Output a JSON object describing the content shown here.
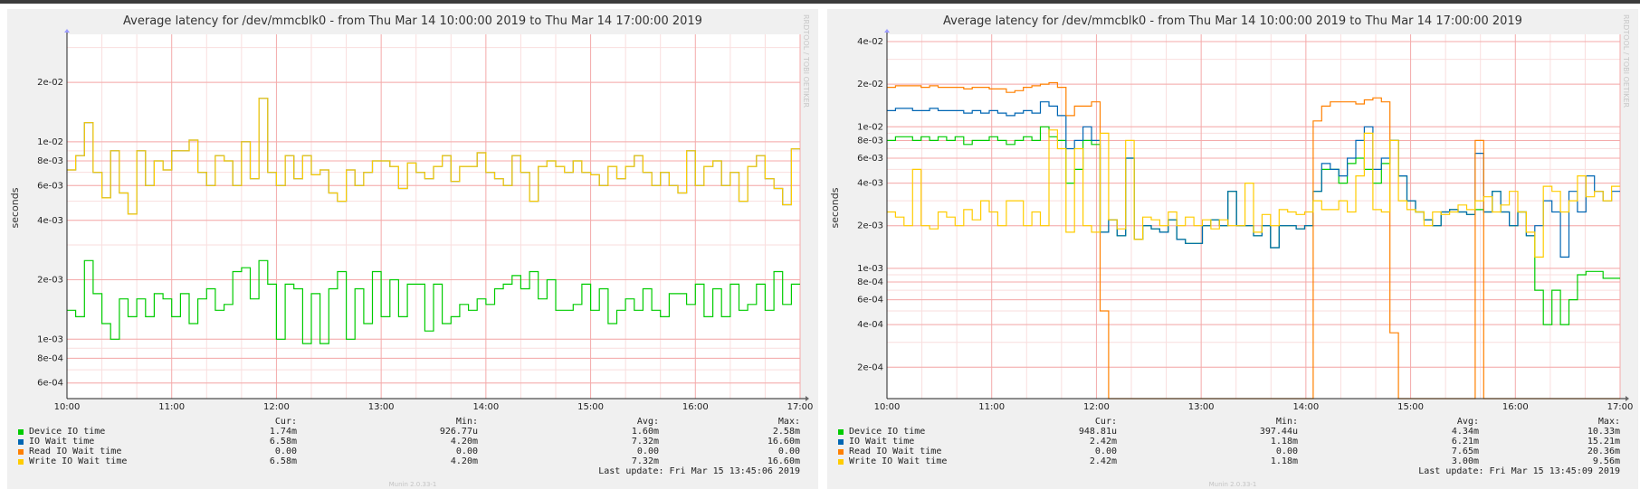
{
  "page": {
    "background": "#ffffff",
    "topbar_color": "#3c3c3c"
  },
  "colors": {
    "panel_bg": "#f0f0f0",
    "plot_bg": "#ffffff",
    "grid_major": "#f4aaaa",
    "grid_minor": "#f9dede"
  },
  "legend_header": {
    "cur": "Cur:",
    "min": "Min:",
    "avg": "Avg:",
    "max": "Max:"
  },
  "chart_data": [
    {
      "type": "line",
      "title": "Average latency for /dev/mmcblk0 - from Thu Mar 14 10:00:00 2019 to Thu Mar 14 17:00:00 2019",
      "ylabel": "seconds",
      "yscale": "log",
      "xlim": [
        "10:00",
        "17:00"
      ],
      "ylim": [
        0.0005,
        0.035
      ],
      "x_ticks": [
        "10:00",
        "11:00",
        "12:00",
        "13:00",
        "14:00",
        "15:00",
        "16:00",
        "17:00"
      ],
      "y_ticks": [
        {
          "label": "6e-04",
          "value": 0.0006
        },
        {
          "label": "8e-04",
          "value": 0.0008
        },
        {
          "label": "1e-03",
          "value": 0.001
        },
        {
          "label": "2e-03",
          "value": 0.002
        },
        {
          "label": "4e-03",
          "value": 0.004
        },
        {
          "label": "6e-03",
          "value": 0.006
        },
        {
          "label": "8e-03",
          "value": 0.008
        },
        {
          "label": "1e-02",
          "value": 0.01
        },
        {
          "label": "2e-02",
          "value": 0.02
        }
      ],
      "grid": true,
      "legend_position": "bottom",
      "watermark": "RRDTOOL / TOBI OETIKER",
      "footer": "Munin 2.0.33-1",
      "last_update": "Last update: Fri Mar 15 13:45:06 2019",
      "series": [
        {
          "name": "Device IO time",
          "color": "#00cc00",
          "cur": "1.74m",
          "min": "926.77u",
          "avg": "1.60m",
          "max": "2.58m",
          "values": [
            1.4,
            1.3,
            2.5,
            1.7,
            1.2,
            1.0,
            1.6,
            1.3,
            1.6,
            1.3,
            1.7,
            1.6,
            1.3,
            1.7,
            1.2,
            1.6,
            1.8,
            1.4,
            1.5,
            2.2,
            2.3,
            1.6,
            2.5,
            1.9,
            1.0,
            1.9,
            1.8,
            0.95,
            1.7,
            0.95,
            1.8,
            2.2,
            1.0,
            1.8,
            1.2,
            2.2,
            1.3,
            2.0,
            1.3,
            1.9,
            1.9,
            1.1,
            1.9,
            1.2,
            1.3,
            1.5,
            1.4,
            1.6,
            1.5,
            1.8,
            1.9,
            2.1,
            1.8,
            2.2,
            1.6,
            2.0,
            1.4,
            1.4,
            1.5,
            1.9,
            1.4,
            1.8,
            1.2,
            1.4,
            1.6,
            1.4,
            1.8,
            1.4,
            1.3,
            1.7,
            1.7,
            1.5,
            1.9,
            1.3,
            1.8,
            1.3,
            1.9,
            1.4,
            1.5,
            1.9,
            1.4,
            2.2,
            1.5,
            1.9
          ]
        },
        {
          "name": "IO Wait time",
          "color": "#0066b3",
          "cur": "6.58m",
          "min": "4.20m",
          "avg": "7.32m",
          "max": "16.60m",
          "values": [
            7.2,
            8.5,
            12.5,
            7.0,
            5.2,
            9.0,
            5.5,
            4.3,
            9.0,
            6.0,
            8.0,
            7.2,
            9.0,
            9.0,
            10.2,
            7.0,
            6.0,
            8.5,
            8.0,
            6.0,
            10.0,
            6.5,
            16.6,
            7.0,
            6.0,
            8.5,
            6.5,
            8.5,
            6.8,
            7.2,
            5.5,
            5.0,
            7.2,
            6.0,
            7.0,
            8.0,
            8.0,
            7.5,
            5.8,
            7.8,
            7.0,
            6.5,
            7.5,
            8.5,
            6.3,
            7.5,
            7.5,
            8.8,
            7.0,
            6.5,
            6.0,
            8.5,
            7.0,
            5.0,
            7.5,
            8.0,
            7.5,
            7.0,
            8.0,
            7.0,
            6.8,
            6.0,
            7.5,
            6.5,
            7.5,
            8.5,
            7.0,
            6.0,
            7.0,
            6.0,
            5.5,
            9.0,
            6.0,
            7.5,
            8.0,
            6.0,
            7.0,
            5.0,
            7.5,
            8.5,
            6.5,
            5.8,
            4.8,
            9.2
          ]
        },
        {
          "name": "Read IO Wait time",
          "color": "#ff8000",
          "cur": "0.00",
          "min": "0.00",
          "avg": "0.00",
          "max": "0.00",
          "values": []
        },
        {
          "name": "Write IO Wait time",
          "color": "#ffcc00",
          "cur": "6.58m",
          "min": "4.20m",
          "avg": "7.32m",
          "max": "16.60m",
          "values": [
            7.2,
            8.5,
            12.5,
            7.0,
            5.2,
            9.0,
            5.5,
            4.3,
            9.0,
            6.0,
            8.0,
            7.2,
            9.0,
            9.0,
            10.2,
            7.0,
            6.0,
            8.5,
            8.0,
            6.0,
            10.0,
            6.5,
            16.6,
            7.0,
            6.0,
            8.5,
            6.5,
            8.5,
            6.8,
            7.2,
            5.5,
            5.0,
            7.2,
            6.0,
            7.0,
            8.0,
            8.0,
            7.5,
            5.8,
            7.8,
            7.0,
            6.5,
            7.5,
            8.5,
            6.3,
            7.5,
            7.5,
            8.8,
            7.0,
            6.5,
            6.0,
            8.5,
            7.0,
            5.0,
            7.5,
            8.0,
            7.5,
            7.0,
            8.0,
            7.0,
            6.8,
            6.0,
            7.5,
            6.5,
            7.5,
            8.5,
            7.0,
            6.0,
            7.0,
            6.0,
            5.5,
            9.0,
            6.0,
            7.5,
            8.0,
            6.0,
            7.0,
            5.0,
            7.5,
            8.5,
            6.5,
            5.8,
            4.8,
            9.2
          ]
        }
      ]
    },
    {
      "type": "line",
      "title": "Average latency for /dev/mmcblk0 - from Thu Mar 14 10:00:00 2019 to Thu Mar 14 17:00:00 2019",
      "ylabel": "seconds",
      "yscale": "log",
      "xlim": [
        "10:00",
        "17:00"
      ],
      "ylim": [
        0.00012,
        0.045
      ],
      "x_ticks": [
        "10:00",
        "11:00",
        "12:00",
        "13:00",
        "14:00",
        "15:00",
        "16:00",
        "17:00"
      ],
      "y_ticks": [
        {
          "label": "2e-04",
          "value": 0.0002
        },
        {
          "label": "4e-04",
          "value": 0.0004
        },
        {
          "label": "6e-04",
          "value": 0.0006
        },
        {
          "label": "8e-04",
          "value": 0.0008
        },
        {
          "label": "1e-03",
          "value": 0.001
        },
        {
          "label": "2e-03",
          "value": 0.002
        },
        {
          "label": "4e-03",
          "value": 0.004
        },
        {
          "label": "6e-03",
          "value": 0.006
        },
        {
          "label": "8e-03",
          "value": 0.008
        },
        {
          "label": "1e-02",
          "value": 0.01
        },
        {
          "label": "2e-02",
          "value": 0.02
        },
        {
          "label": "4e-02",
          "value": 0.04
        }
      ],
      "grid": true,
      "legend_position": "bottom",
      "watermark": "RRDTOOL / TOBI OETIKER",
      "footer": "Munin 2.0.33-1",
      "last_update": "Last update: Fri Mar 15 13:45:09 2019",
      "series": [
        {
          "name": "Device IO time",
          "color": "#00cc00",
          "cur": "948.81u",
          "min": "397.44u",
          "avg": "4.34m",
          "max": "10.33m",
          "values": [
            8.0,
            8.5,
            8.5,
            8.0,
            8.5,
            8.0,
            8.5,
            8.0,
            8.5,
            7.5,
            8.0,
            8.0,
            8.5,
            8.0,
            7.5,
            8.0,
            8.5,
            8.0,
            10.0,
            8.5,
            8.0,
            4.0,
            5.0,
            8.0,
            7.5,
            1.8,
            2.2,
            1.7,
            6.0,
            1.6,
            2.0,
            1.9,
            1.8,
            2.2,
            1.6,
            1.5,
            1.5,
            2.0,
            2.2,
            2.0,
            3.5,
            2.0,
            2.0,
            1.7,
            2.0,
            1.4,
            2.0,
            2.0,
            1.9,
            2.0,
            3.5,
            5.0,
            5.0,
            4.0,
            5.5,
            6.0,
            5.0,
            4.0,
            5.5,
            8.0,
            4.5,
            3.0,
            2.5,
            2.2,
            2.0,
            2.5,
            2.6,
            2.5,
            2.4,
            2.6,
            2.5,
            3.5,
            2.5,
            2.0,
            2.5,
            1.7,
            0.7,
            0.4,
            0.7,
            0.4,
            0.6,
            0.9,
            0.95,
            0.95,
            0.85,
            0.85
          ]
        },
        {
          "name": "IO Wait time",
          "color": "#0066b3",
          "cur": "2.42m",
          "min": "1.18m",
          "avg": "6.21m",
          "max": "15.21m",
          "values": [
            13.0,
            13.5,
            13.5,
            13.0,
            13.0,
            13.5,
            13.0,
            13.0,
            13.0,
            12.5,
            13.0,
            12.5,
            13.0,
            12.5,
            12.0,
            12.5,
            13.0,
            12.5,
            15.0,
            14.0,
            12.0,
            7.0,
            8.0,
            10.0,
            8.0,
            1.8,
            2.2,
            1.7,
            6.0,
            1.6,
            2.0,
            1.9,
            1.8,
            2.2,
            1.6,
            1.5,
            1.5,
            2.0,
            2.2,
            2.0,
            3.5,
            2.0,
            2.0,
            1.7,
            2.0,
            1.4,
            2.0,
            2.0,
            1.9,
            2.0,
            3.5,
            5.5,
            5.0,
            4.5,
            6.0,
            8.0,
            10.0,
            5.0,
            6.0,
            8.0,
            4.5,
            3.0,
            2.5,
            2.2,
            2.0,
            2.5,
            2.6,
            2.5,
            2.4,
            6.5,
            2.5,
            3.5,
            2.5,
            2.0,
            2.5,
            1.7,
            2.0,
            3.0,
            2.5,
            1.2,
            3.5,
            2.5,
            4.5,
            3.5,
            3.0,
            3.5
          ]
        },
        {
          "name": "Read IO Wait time",
          "color": "#ff8000",
          "cur": "0.00",
          "min": "0.00",
          "avg": "7.65m",
          "max": "20.36m",
          "values": [
            19.0,
            19.5,
            19.5,
            19.5,
            19.0,
            19.5,
            19.0,
            19.0,
            19.0,
            18.5,
            19.0,
            19.0,
            18.5,
            18.5,
            17.5,
            18.0,
            19.0,
            19.5,
            20.0,
            20.5,
            19.0,
            12.0,
            14.0,
            14.0,
            15.0,
            0.5,
            0.0,
            0.0,
            0.0,
            0.0,
            0.0,
            0.0,
            0.0,
            0.0,
            0.0,
            0.0,
            0.0,
            0.0,
            0.0,
            0.0,
            0.0,
            0.0,
            0.0,
            0.0,
            0.0,
            0.0,
            0.0,
            0.0,
            0.0,
            0.0,
            11.0,
            14.0,
            15.0,
            15.0,
            15.0,
            14.5,
            15.5,
            16.0,
            15.0,
            0.35,
            0.0,
            0.0,
            0.0,
            0.0,
            0.0,
            0.0,
            0.0,
            0.0,
            0.0,
            8.0,
            0.0,
            0.0,
            0.0,
            0.0,
            0.0,
            0.0,
            0.0,
            0.0,
            0.0,
            0.0,
            0.0,
            0.0,
            0.0,
            0.0,
            0.0,
            0.0
          ]
        },
        {
          "name": "Write IO Wait time",
          "color": "#ffcc00",
          "cur": "2.42m",
          "min": "1.18m",
          "avg": "3.00m",
          "max": "9.56m",
          "values": [
            2.5,
            2.3,
            2.0,
            5.0,
            2.0,
            1.9,
            2.5,
            2.3,
            2.0,
            2.6,
            2.2,
            3.0,
            2.5,
            2.0,
            3.0,
            3.0,
            2.0,
            2.5,
            2.0,
            9.5,
            7.0,
            1.8,
            7.0,
            2.0,
            1.8,
            9.0,
            2.2,
            1.9,
            8.0,
            1.6,
            2.3,
            2.2,
            2.0,
            2.5,
            2.0,
            2.3,
            2.0,
            2.2,
            1.9,
            2.2,
            2.0,
            2.0,
            4.0,
            1.8,
            2.4,
            2.0,
            2.6,
            2.5,
            2.4,
            2.5,
            3.0,
            2.6,
            2.6,
            3.0,
            2.5,
            4.5,
            9.0,
            2.6,
            2.5,
            8.0,
            3.0,
            2.6,
            2.5,
            2.0,
            2.5,
            2.4,
            2.5,
            2.8,
            2.6,
            3.0,
            3.2,
            2.5,
            2.8,
            3.5,
            2.5,
            1.8,
            1.2,
            3.8,
            3.5,
            2.5,
            3.0,
            4.5,
            3.2,
            3.5,
            3.0,
            3.8
          ]
        }
      ]
    }
  ]
}
